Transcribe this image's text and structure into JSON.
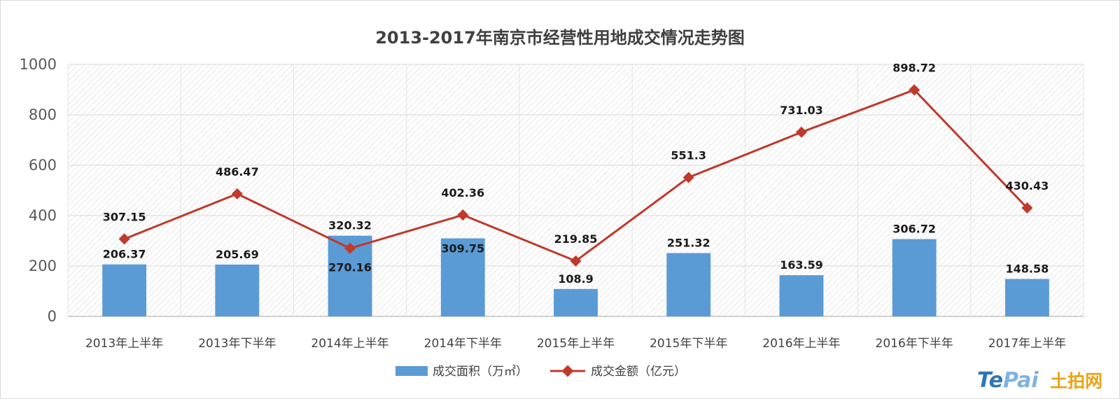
{
  "chart_data": {
    "type": "bar+line",
    "title": "2013-2017年南京市经营性用地成交情况走势图",
    "categories": [
      "2013年上半年",
      "2013年下半年",
      "2014年上半年",
      "2014年下半年",
      "2015年上半年",
      "2015年下半年",
      "2016年上半年",
      "2016年下半年",
      "2017年上半年"
    ],
    "series": [
      {
        "name": "成交面积（万㎡）",
        "type": "bar",
        "color": "#5b9bd5",
        "values": [
          206.37,
          205.69,
          320.32,
          309.75,
          108.9,
          251.32,
          163.59,
          306.72,
          148.58
        ],
        "labels": [
          "206.37",
          "205.69",
          "320.32",
          "309.75",
          "108.9",
          "251.32",
          "163.59",
          "306.72",
          "148.58"
        ]
      },
      {
        "name": "成交金额（亿元）",
        "type": "line",
        "color": "#c0392b",
        "marker": "diamond",
        "values": [
          307.15,
          486.47,
          270.16,
          402.36,
          219.85,
          551.3,
          731.03,
          898.72,
          430.43
        ],
        "labels": [
          "307.15",
          "486.47",
          "270.16",
          "402.36",
          "219.85",
          "551.3",
          "731.03",
          "898.72",
          "430.43"
        ]
      }
    ],
    "ylim": [
      0,
      1000
    ],
    "yticks": [
      "0",
      "200",
      "400",
      "600",
      "800",
      "1000"
    ],
    "grid": true,
    "legend": "bottom"
  },
  "watermark": {
    "latin_1": "Te",
    "latin_2": "Pai",
    "cn": "土拍网",
    "color_latin_1": "#2e75b6",
    "color_latin_2": "#7fb3e0",
    "color_cn": "#e8a317"
  }
}
